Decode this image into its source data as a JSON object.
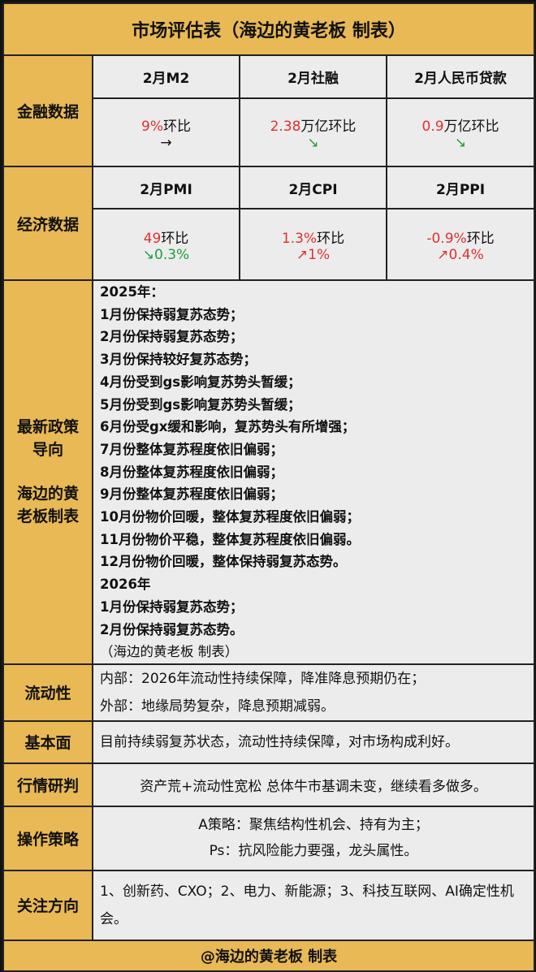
{
  "title": "市场评估表（海边的黄老板 制表）",
  "finance": {
    "label": "金融数据",
    "items": [
      {
        "header": "2月M2",
        "value": "9%",
        "suffix": "环比",
        "trend": "→",
        "trend_color": "#111111"
      },
      {
        "header": "2月社融",
        "value": "2.38",
        "suffix": "万亿环比",
        "trend": "↘",
        "trend_color": "#1f9e3a"
      },
      {
        "header": "2月人民币贷款",
        "value": "0.9",
        "suffix": "万亿环比",
        "trend": "↘",
        "trend_color": "#1f9e3a"
      }
    ]
  },
  "economy": {
    "label": "经济数据",
    "items": [
      {
        "header": "2月PMI",
        "value": "49",
        "suffix": "环比",
        "trend": "↘0.3%",
        "trend_color": "#1f9e3a"
      },
      {
        "header": "2月CPI",
        "value": "1.3%",
        "suffix": "环比",
        "trend": "↗1%",
        "trend_color": "#e03030"
      },
      {
        "header": "2月PPI",
        "value": "-0.9%",
        "suffix": "环比",
        "trend": "↗0.4%",
        "trend_color": "#e03030"
      }
    ]
  },
  "policy": {
    "label_1": "最新政策导向",
    "label_2": "海边的黄老板制表",
    "lines": [
      "2025年：",
      "1月份保持弱复苏态势；",
      "2月份保持弱复苏态势；",
      "3月份保持较好复苏态势；",
      "4月份受到gs影响复苏势头暂缓；",
      "5月份受到gs影响复苏势头暂缓；",
      "6月份受gx缓和影响，复苏势头有所增强；",
      "7月份整体复苏程度依旧偏弱；",
      "8月份整体复苏程度依旧偏弱；",
      "9月份整体复苏程度依旧偏弱；",
      "10月份物价回暖，整体复苏程度依旧偏弱；",
      "11月份物价平稳，整体复苏程度依旧偏弱。",
      "12月份物价回暖，整体保持弱复苏态势。",
      "2026年",
      "1月份保持弱复苏态势；",
      "2月份保持弱复苏态势。"
    ],
    "note": "（海边的黄老板 制表）"
  },
  "liquidity": {
    "label": "流动性",
    "lines": [
      "内部：2026年流动性持续保障，降准降息预期仍在；",
      "外部：地缘局势复杂，降息预期减弱。"
    ]
  },
  "fundamentals": {
    "label": "基本面",
    "text": "目前持续弱复苏状态，流动性持续保障，对市场构成利好。"
  },
  "outlook": {
    "label": "行情研判",
    "text": "资产荒+流动性宽松 总体牛市基调未变，继续看多做多。"
  },
  "strategy": {
    "label": "操作策略",
    "lines": [
      "A策略：聚焦结构性机会、持有为主；",
      "Ps：抗风险能力要强，龙头属性。"
    ]
  },
  "focus": {
    "label": "关注方向",
    "text": "1、创新药、CXO；2、电力、新能源；3、科技互联网、AI确定性机会。"
  },
  "footer": "@海边的黄老板 制表",
  "colors": {
    "gold": "#e9b955",
    "cell": "#ececec",
    "red": "#e03030",
    "green": "#1f9e3a"
  }
}
